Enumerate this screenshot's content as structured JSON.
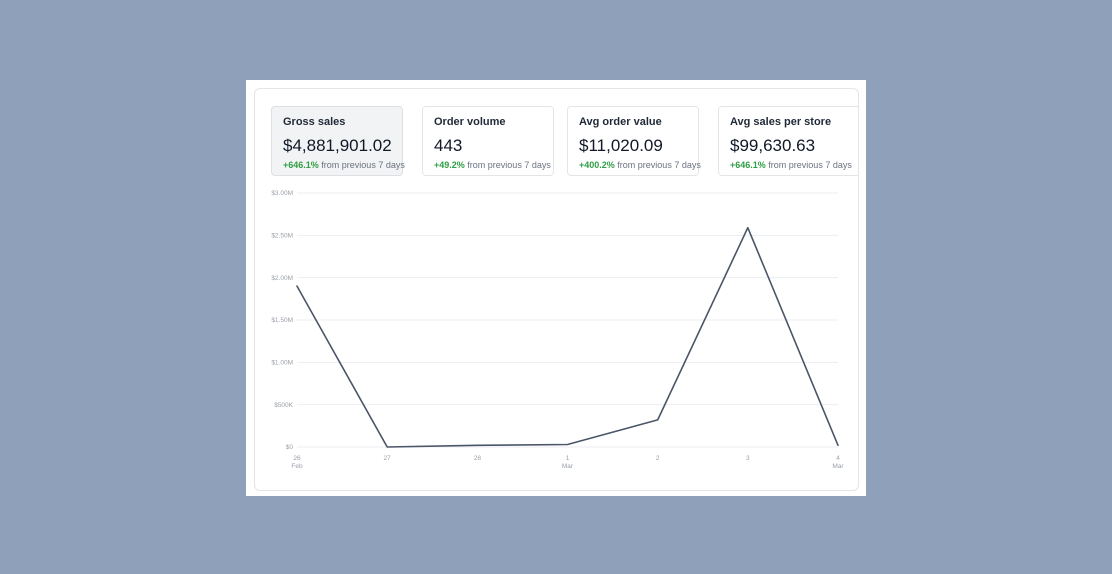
{
  "metrics": [
    {
      "label": "Gross sales",
      "value": "$4,881,901.02",
      "change": "+646.1%",
      "note": "from previous 7 days",
      "selected": true
    },
    {
      "label": "Order volume",
      "value": "443",
      "change": "+49.2%",
      "note": "from previous 7 days",
      "selected": false
    },
    {
      "label": "Avg order value",
      "value": "$11,020.09",
      "change": "+400.2%",
      "note": "from previous 7 days",
      "selected": false
    },
    {
      "label": "Avg sales per store",
      "value": "$99,630.63",
      "change": "+646.1%",
      "note": "from previous 7 days",
      "selected": false
    }
  ],
  "colors": {
    "line": "#4b5568",
    "positive": "#2f9e44",
    "grid": "#eceef0"
  },
  "chart_data": {
    "type": "line",
    "title": "",
    "xlabel": "",
    "ylabel": "",
    "x_ticks": [
      {
        "label": "26",
        "sub": "Feb"
      },
      {
        "label": "27",
        "sub": ""
      },
      {
        "label": "28",
        "sub": ""
      },
      {
        "label": "1",
        "sub": "Mar"
      },
      {
        "label": "2",
        "sub": ""
      },
      {
        "label": "3",
        "sub": ""
      },
      {
        "label": "4",
        "sub": "Mar"
      }
    ],
    "y_ticks": [
      {
        "value": 0,
        "label": "$0"
      },
      {
        "value": 500000,
        "label": "$500K"
      },
      {
        "value": 1000000,
        "label": "$1.00M"
      },
      {
        "value": 1500000,
        "label": "$1.50M"
      },
      {
        "value": 2000000,
        "label": "$2.00M"
      },
      {
        "value": 2500000,
        "label": "$2.50M"
      },
      {
        "value": 3000000,
        "label": "$3.00M"
      }
    ],
    "ylim": [
      0,
      3000000
    ],
    "grid": true,
    "series": [
      {
        "values": [
          1900000,
          0,
          20000,
          30000,
          320000,
          2590000,
          20000
        ]
      }
    ]
  }
}
